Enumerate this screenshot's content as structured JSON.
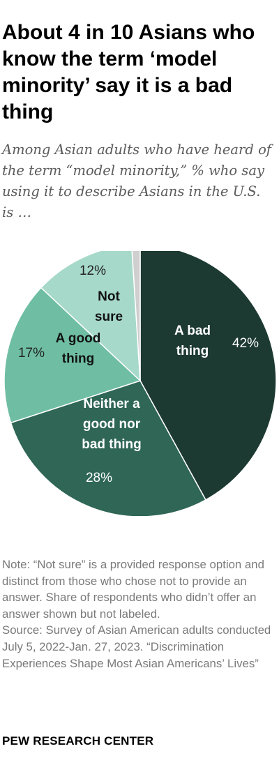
{
  "title": "About 4 in 10 Asians who know the term ‘model minority’ say it is a bad thing",
  "subtitle": "Among Asian adults who have heard of the term “model minority,” % who say using it to describe Asians in the U.S. is …",
  "note": "Note: “Not sure” is a provided response option and distinct from those who chose not to provide an answer. Share of respondents who didn’t offer an answer shown but not labeled.",
  "source": "Source: Survey of Asian American adults conducted July 5, 2022-Jan. 27, 2023. “Discrimination Experiences Shape Most Asian Americans’ Lives”",
  "brand": "PEW RESEARCH CENTER",
  "chart_data": {
    "type": "pie",
    "start_angle_deg": 0,
    "direction": "clockwise",
    "slices": [
      {
        "label": "A bad thing",
        "value": 42,
        "value_label": "42%",
        "color": "#1d3a32"
      },
      {
        "label": "Neither a good nor bad thing",
        "value": 28,
        "value_label": "28%",
        "color": "#2f6655"
      },
      {
        "label": "A good thing",
        "value": 17,
        "value_label": "17%",
        "color": "#6fbea4"
      },
      {
        "label": "Not sure",
        "value": 12,
        "value_label": "12%",
        "color": "#a6d9c9"
      },
      {
        "label": "",
        "value": 1,
        "value_label": "",
        "color": "#cfcfcf"
      }
    ]
  }
}
